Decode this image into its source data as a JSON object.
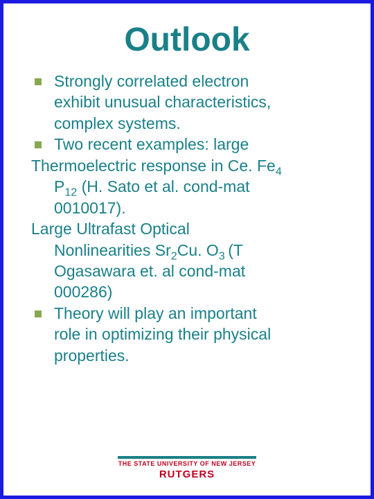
{
  "colors": {
    "border": "#1a1ae0",
    "title": "#1a8088",
    "text": "#1a8088",
    "bullet": "#86a850",
    "divider": "#1a8088",
    "footer_text": "#c00020",
    "background": "#ffffff"
  },
  "typography": {
    "title_fontsize": 48,
    "body_fontsize": 23,
    "footer1_fontsize": 9,
    "footer2_fontsize": 15
  },
  "title": "Outlook",
  "body": {
    "b1_l1": "Strongly correlated electron",
    "b1_l2": "exhibit unusual characteristics,",
    "b1_l3": "complex systems.",
    "b2_l1": "Two recent examples: large",
    "t1_pre": "Thermoelectric response in Ce. Fe",
    "t1_sub": "4",
    "t2_pre": "P",
    "t2_sub": "12",
    "t2_post": " (H. Sato et al. cond-mat",
    "t3": "0010017).",
    "t4": "Large  Ultrafast Optical",
    "t5_pre": "Nonlinearities Sr",
    "t5_sub1": "2",
    "t5_mid": "Cu. O",
    "t5_sub2": "3 ",
    "t5_post": "(T",
    "t6": "Ogasawara et. al cond-mat",
    "t7": "000286)",
    "b3_l1": "Theory will play an important",
    "b3_l2": "role in optimizing their physical",
    "b3_l3": "properties."
  },
  "footer": {
    "line1": "THE STATE UNIVERSITY OF NEW JERSEY",
    "line2": "RUTGERS"
  }
}
